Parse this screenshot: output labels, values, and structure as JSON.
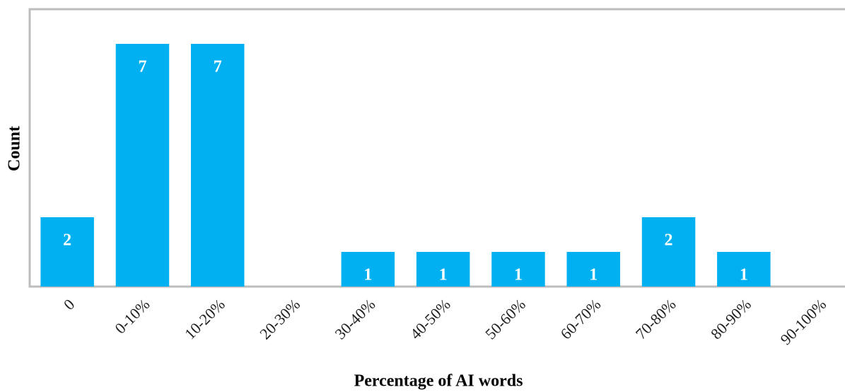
{
  "chart_data": {
    "type": "bar",
    "x_label": "Percentage of AI words",
    "y_label": "Count",
    "categories": [
      "0",
      "0-10%",
      "10-20%",
      "20-30%",
      "30-40%",
      "40-50%",
      "50-60%",
      "60-70%",
      "70-80%",
      "80-90%",
      "90-100%"
    ],
    "values": [
      2,
      7,
      7,
      0,
      1,
      1,
      1,
      1,
      2,
      1,
      0
    ],
    "color": "#00b0f0",
    "ylim": [
      0,
      8
    ]
  }
}
